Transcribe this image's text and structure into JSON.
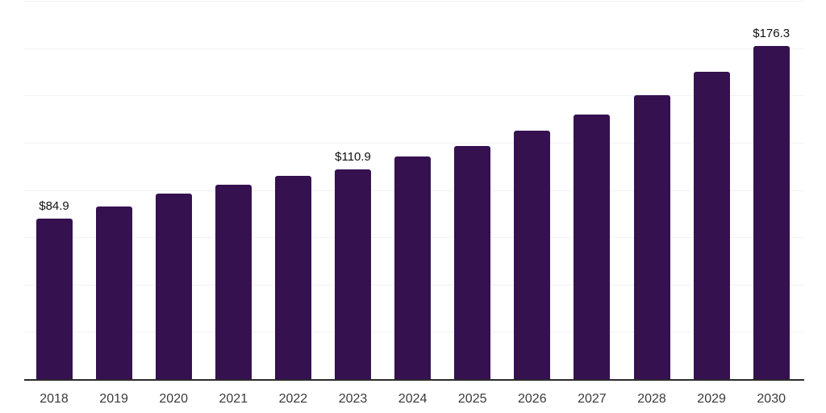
{
  "chart_data": {
    "type": "bar",
    "title": "",
    "xlabel": "",
    "ylabel": "",
    "categories": [
      "2018",
      "2019",
      "2020",
      "2021",
      "2022",
      "2023",
      "2024",
      "2025",
      "2026",
      "2027",
      "2028",
      "2029",
      "2030"
    ],
    "values": [
      84.9,
      91.3,
      98.0,
      102.9,
      107.6,
      110.9,
      117.5,
      123.4,
      131.4,
      139.9,
      150.2,
      162.5,
      176.3
    ],
    "data_labels": [
      "$84.9",
      "",
      "",
      "",
      "",
      "$110.9",
      "",
      "",
      "",
      "",
      "",
      "",
      "$176.3"
    ],
    "ylim": [
      0,
      200
    ],
    "gridline_interval": 25,
    "grid": true,
    "y_axis_labels_visible": false,
    "legend": "none",
    "colors": {
      "bar": "#351150",
      "axis_line": "#2b2b2b",
      "gridline": "#f2f2f2",
      "tick_label": "#3a3a3a",
      "data_label": "#111111",
      "background": "#ffffff"
    }
  }
}
